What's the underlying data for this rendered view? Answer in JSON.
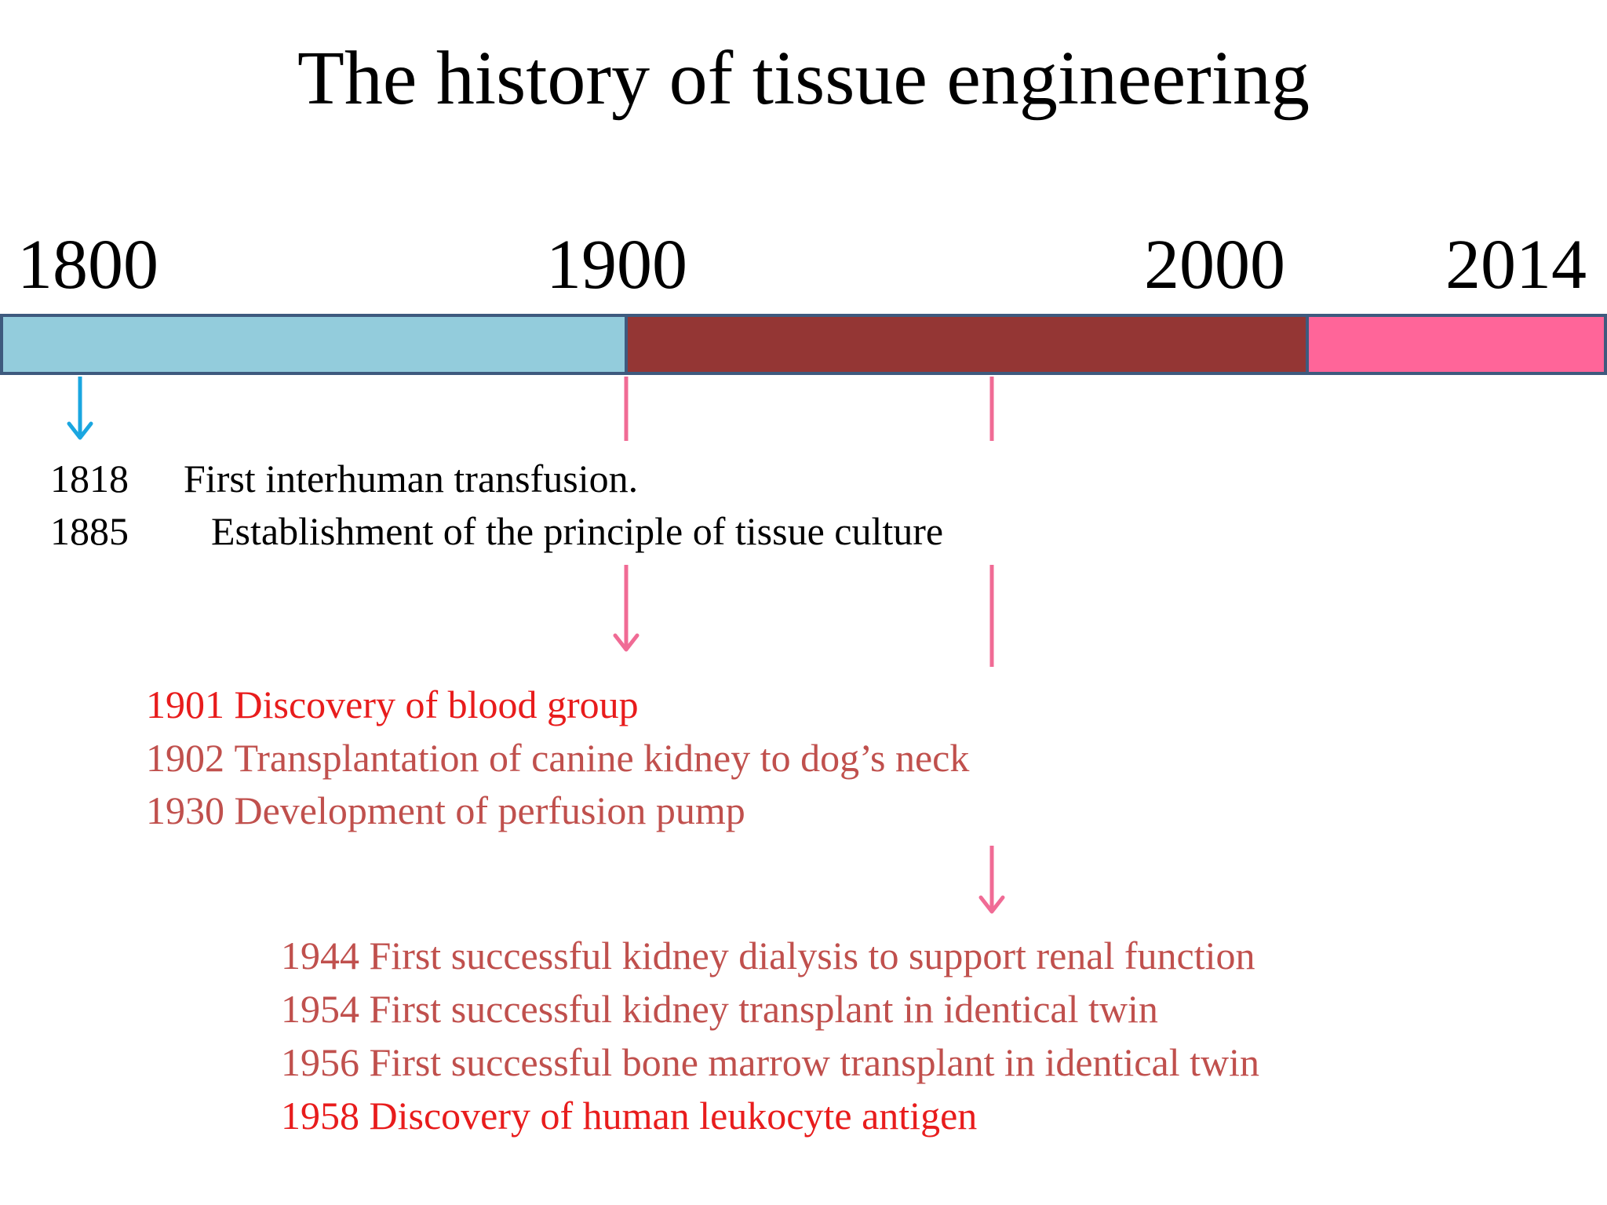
{
  "title": "The history of tissue engineering",
  "timeline": {
    "years": [
      "1800",
      "1900",
      "2000",
      "2014"
    ],
    "segments": [
      {
        "era": "1800-1900",
        "color": "#93ccdc"
      },
      {
        "era": "1900-2000",
        "color": "#943634"
      },
      {
        "era": "2000-2014",
        "color": "#ff6599"
      }
    ],
    "border_color": "#3e5a7e",
    "arrow_colors": {
      "era1": "#1aa6e0",
      "era2": "#f06b95"
    }
  },
  "event_groups": [
    {
      "events": [
        {
          "year": "1818",
          "text": "First interhuman transfusion.",
          "color": "#000000"
        },
        {
          "year": "1885",
          "text": "Establishment of the principle of tissue culture",
          "color": "#000000"
        }
      ]
    },
    {
      "events": [
        {
          "year": "1901",
          "text": "Discovery of blood group",
          "color": "#e81c1c"
        },
        {
          "year": "1902",
          "text": "Transplantation of canine kidney to dog’s neck",
          "color": "#c0504d"
        },
        {
          "year": "1930",
          "text": "Development of perfusion pump",
          "color": "#c0504d"
        }
      ]
    },
    {
      "events": [
        {
          "year": "1944",
          "text": "First successful kidney dialysis to support renal function",
          "color": "#c0504d"
        },
        {
          "year": "1954",
          "text": "First successful kidney transplant in identical twin",
          "color": "#c0504d"
        },
        {
          "year": "1956",
          "text": "First successful bone marrow transplant in identical twin",
          "color": "#c0504d"
        },
        {
          "year": "1958",
          "text": "Discovery of human leukocyte antigen",
          "color": "#e81c1c"
        }
      ]
    }
  ]
}
